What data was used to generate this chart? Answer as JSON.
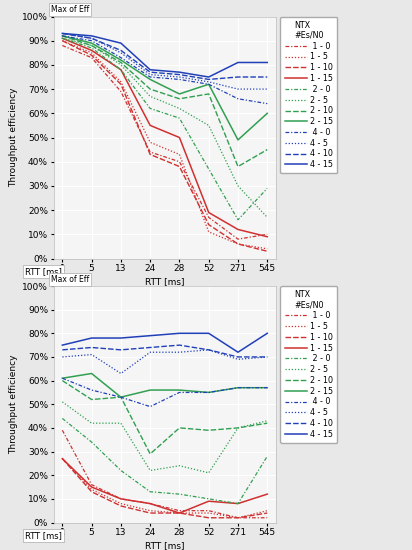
{
  "x_labels": [
    "1",
    "5",
    "13",
    "24",
    "28",
    "52",
    "271",
    "545"
  ],
  "top_chart": {
    "title": "Max of Eff",
    "ylabel": "Throughput efficiency",
    "series": {
      "1-0": [
        0.88,
        0.83,
        0.69,
        0.44,
        0.4,
        0.17,
        0.08,
        0.1
      ],
      "1-5": [
        0.9,
        0.85,
        0.73,
        0.48,
        0.43,
        0.11,
        0.06,
        0.04
      ],
      "1-10": [
        0.9,
        0.84,
        0.72,
        0.43,
        0.38,
        0.14,
        0.06,
        0.03
      ],
      "1-15": [
        0.91,
        0.86,
        0.78,
        0.55,
        0.5,
        0.19,
        0.12,
        0.09
      ],
      "2-0": [
        0.91,
        0.87,
        0.78,
        0.62,
        0.58,
        0.37,
        0.16,
        0.29
      ],
      "2-5": [
        0.91,
        0.88,
        0.8,
        0.67,
        0.62,
        0.55,
        0.3,
        0.17
      ],
      "2-10": [
        0.92,
        0.88,
        0.81,
        0.7,
        0.66,
        0.68,
        0.38,
        0.45
      ],
      "2-15": [
        0.92,
        0.89,
        0.82,
        0.74,
        0.68,
        0.72,
        0.49,
        0.6
      ],
      "4-0": [
        0.92,
        0.9,
        0.83,
        0.75,
        0.74,
        0.72,
        0.66,
        0.64
      ],
      "4-5": [
        0.93,
        0.91,
        0.85,
        0.76,
        0.75,
        0.73,
        0.7,
        0.7
      ],
      "4-10": [
        0.93,
        0.91,
        0.86,
        0.77,
        0.76,
        0.74,
        0.75,
        0.75
      ],
      "4-15": [
        0.93,
        0.92,
        0.89,
        0.78,
        0.77,
        0.75,
        0.81,
        0.81
      ]
    }
  },
  "bot_chart": {
    "title": "Max of Eff",
    "ylabel": "Throughput efficiency",
    "series": {
      "1-0": [
        0.39,
        0.16,
        0.1,
        0.08,
        0.05,
        0.05,
        0.02,
        0.02
      ],
      "1-5": [
        0.27,
        0.14,
        0.08,
        0.05,
        0.04,
        0.04,
        0.02,
        0.05
      ],
      "1-10": [
        0.27,
        0.13,
        0.07,
        0.04,
        0.04,
        0.02,
        0.02,
        0.04
      ],
      "1-15": [
        0.27,
        0.15,
        0.1,
        0.08,
        0.04,
        0.09,
        0.08,
        0.12
      ],
      "2-0": [
        0.44,
        0.34,
        0.22,
        0.13,
        0.12,
        0.1,
        0.08,
        0.28
      ],
      "2-5": [
        0.51,
        0.42,
        0.42,
        0.22,
        0.24,
        0.21,
        0.4,
        0.43
      ],
      "2-10": [
        0.6,
        0.52,
        0.53,
        0.29,
        0.4,
        0.39,
        0.4,
        0.42
      ],
      "2-15": [
        0.61,
        0.63,
        0.53,
        0.56,
        0.56,
        0.55,
        0.57,
        0.57
      ],
      "4-0": [
        0.61,
        0.56,
        0.53,
        0.49,
        0.55,
        0.55,
        0.57,
        0.57
      ],
      "4-5": [
        0.7,
        0.71,
        0.63,
        0.72,
        0.72,
        0.73,
        0.69,
        0.7
      ],
      "4-10": [
        0.73,
        0.74,
        0.73,
        0.74,
        0.75,
        0.73,
        0.7,
        0.7
      ],
      "4-15": [
        0.75,
        0.78,
        0.78,
        0.79,
        0.8,
        0.8,
        0.72,
        0.8
      ]
    }
  },
  "legend_labels": [
    " 1 - 0",
    "1 - 5",
    "1 - 10",
    "1 - 15",
    " 2 - 0",
    "2 - 5",
    "2 - 10",
    "2 - 15",
    " 4 - 0",
    "4 - 5",
    "4 - 10",
    "4 - 15"
  ],
  "legend_keys": [
    "1-0",
    "1-5",
    "1-10",
    "1-15",
    "2-0",
    "2-5",
    "2-10",
    "2-15",
    "4-0",
    "4-5",
    "4-10",
    "4-15"
  ],
  "bg_color": "#e8e8e8",
  "plot_bg_color": "#f5f5f5",
  "grid_color": "#ffffff"
}
